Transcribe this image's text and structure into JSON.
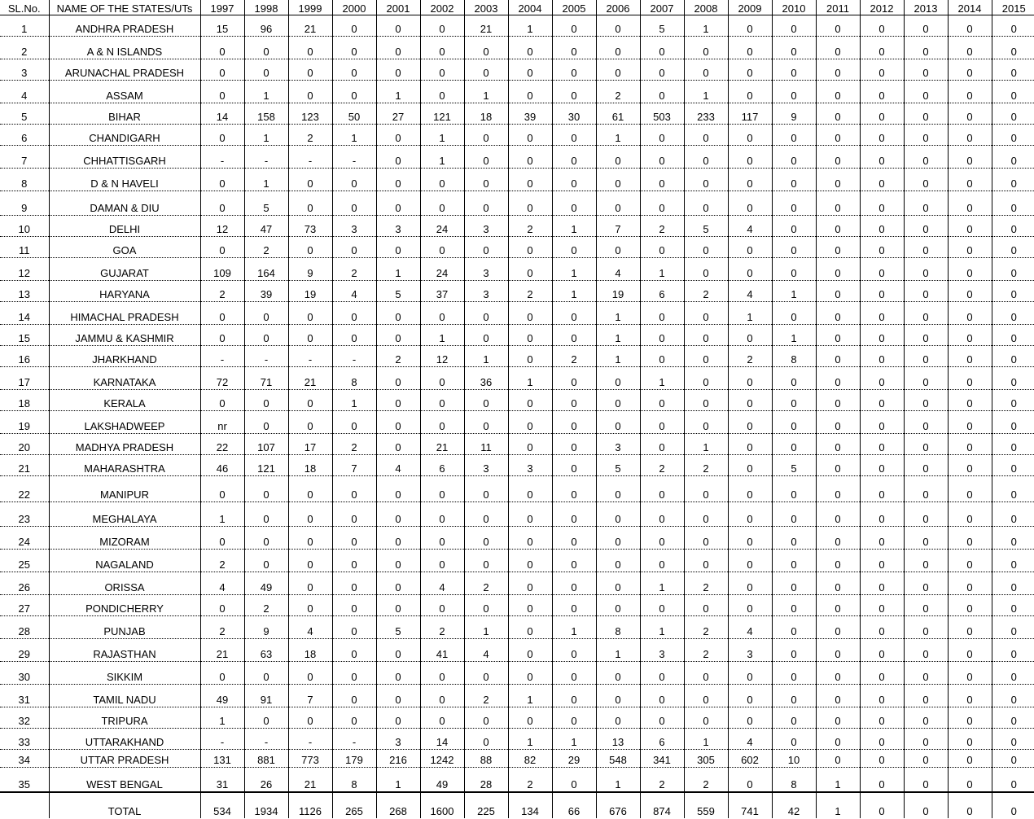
{
  "headers": [
    "SL.No.",
    "NAME OF THE STATES/UTs",
    "1997",
    "1998",
    "1999",
    "2000",
    "2001",
    "2002",
    "2003",
    "2004",
    "2005",
    "2006",
    "2007",
    "2008",
    "2009",
    "2010",
    "2011",
    "2012",
    "2013",
    "2014",
    "2015"
  ],
  "rows": [
    {
      "sl": "1",
      "name": "ANDHRA PRADESH",
      "v": [
        "15",
        "96",
        "21",
        "0",
        "0",
        "0",
        "21",
        "1",
        "0",
        "0",
        "5",
        "1",
        "0",
        "0",
        "0",
        "0",
        "0",
        "0",
        "0"
      ]
    },
    {
      "sl": "2",
      "name": "A & N ISLANDS",
      "v": [
        "0",
        "0",
        "0",
        "0",
        "0",
        "0",
        "0",
        "0",
        "0",
        "0",
        "0",
        "0",
        "0",
        "0",
        "0",
        "0",
        "0",
        "0",
        "0"
      ]
    },
    {
      "sl": "3",
      "name": "ARUNACHAL PRADESH",
      "v": [
        "0",
        "0",
        "0",
        "0",
        "0",
        "0",
        "0",
        "0",
        "0",
        "0",
        "0",
        "0",
        "0",
        "0",
        "0",
        "0",
        "0",
        "0",
        "0"
      ]
    },
    {
      "sl": "4",
      "name": "ASSAM",
      "v": [
        "0",
        "1",
        "0",
        "0",
        "1",
        "0",
        "1",
        "0",
        "0",
        "2",
        "0",
        "1",
        "0",
        "0",
        "0",
        "0",
        "0",
        "0",
        "0"
      ]
    },
    {
      "sl": "5",
      "name": "BIHAR",
      "v": [
        "14",
        "158",
        "123",
        "50",
        "27",
        "121",
        "18",
        "39",
        "30",
        "61",
        "503",
        "233",
        "117",
        "9",
        "0",
        "0",
        "0",
        "0",
        "0"
      ]
    },
    {
      "sl": "6",
      "name": "CHANDIGARH",
      "v": [
        "0",
        "1",
        "2",
        "1",
        "0",
        "1",
        "0",
        "0",
        "0",
        "1",
        "0",
        "0",
        "0",
        "0",
        "0",
        "0",
        "0",
        "0",
        "0"
      ]
    },
    {
      "sl": "7",
      "name": "CHHATTISGARH",
      "v": [
        "-",
        "-",
        "-",
        "-",
        "0",
        "1",
        "0",
        "0",
        "0",
        "0",
        "0",
        "0",
        "0",
        "0",
        "0",
        "0",
        "0",
        "0",
        "0"
      ]
    },
    {
      "sl": "8",
      "name": "D & N HAVELI",
      "v": [
        "0",
        "1",
        "0",
        "0",
        "0",
        "0",
        "0",
        "0",
        "0",
        "0",
        "0",
        "0",
        "0",
        "0",
        "0",
        "0",
        "0",
        "0",
        "0"
      ]
    },
    {
      "sl": "9",
      "name": "DAMAN & DIU",
      "v": [
        "0",
        "5",
        "0",
        "0",
        "0",
        "0",
        "0",
        "0",
        "0",
        "0",
        "0",
        "0",
        "0",
        "0",
        "0",
        "0",
        "0",
        "0",
        "0"
      ]
    },
    {
      "sl": "10",
      "name": "DELHI",
      "v": [
        "12",
        "47",
        "73",
        "3",
        "3",
        "24",
        "3",
        "2",
        "1",
        "7",
        "2",
        "5",
        "4",
        "0",
        "0",
        "0",
        "0",
        "0",
        "0"
      ]
    },
    {
      "sl": "11",
      "name": "GOA",
      "v": [
        "0",
        "2",
        "0",
        "0",
        "0",
        "0",
        "0",
        "0",
        "0",
        "0",
        "0",
        "0",
        "0",
        "0",
        "0",
        "0",
        "0",
        "0",
        "0"
      ]
    },
    {
      "sl": "12",
      "name": "GUJARAT",
      "v": [
        "109",
        "164",
        "9",
        "2",
        "1",
        "24",
        "3",
        "0",
        "1",
        "4",
        "1",
        "0",
        "0",
        "0",
        "0",
        "0",
        "0",
        "0",
        "0"
      ]
    },
    {
      "sl": "13",
      "name": "HARYANA",
      "v": [
        "2",
        "39",
        "19",
        "4",
        "5",
        "37",
        "3",
        "2",
        "1",
        "19",
        "6",
        "2",
        "4",
        "1",
        "0",
        "0",
        "0",
        "0",
        "0"
      ]
    },
    {
      "sl": "14",
      "name": "HIMACHAL PRADESH",
      "v": [
        "0",
        "0",
        "0",
        "0",
        "0",
        "0",
        "0",
        "0",
        "0",
        "1",
        "0",
        "0",
        "1",
        "0",
        "0",
        "0",
        "0",
        "0",
        "0"
      ]
    },
    {
      "sl": "15",
      "name": "JAMMU & KASHMIR",
      "v": [
        "0",
        "0",
        "0",
        "0",
        "0",
        "1",
        "0",
        "0",
        "0",
        "1",
        "0",
        "0",
        "0",
        "1",
        "0",
        "0",
        "0",
        "0",
        "0"
      ]
    },
    {
      "sl": "16",
      "name": "JHARKHAND",
      "v": [
        "-",
        "-",
        "-",
        "-",
        "2",
        "12",
        "1",
        "0",
        "2",
        "1",
        "0",
        "0",
        "2",
        "8",
        "0",
        "0",
        "0",
        "0",
        "0"
      ]
    },
    {
      "sl": "17",
      "name": "KARNATAKA",
      "v": [
        "72",
        "71",
        "21",
        "8",
        "0",
        "0",
        "36",
        "1",
        "0",
        "0",
        "1",
        "0",
        "0",
        "0",
        "0",
        "0",
        "0",
        "0",
        "0"
      ]
    },
    {
      "sl": "18",
      "name": "KERALA",
      "v": [
        "0",
        "0",
        "0",
        "1",
        "0",
        "0",
        "0",
        "0",
        "0",
        "0",
        "0",
        "0",
        "0",
        "0",
        "0",
        "0",
        "0",
        "0",
        "0"
      ]
    },
    {
      "sl": "19",
      "name": "LAKSHADWEEP",
      "v": [
        "nr",
        "0",
        "0",
        "0",
        "0",
        "0",
        "0",
        "0",
        "0",
        "0",
        "0",
        "0",
        "0",
        "0",
        "0",
        "0",
        "0",
        "0",
        "0"
      ]
    },
    {
      "sl": "20",
      "name": "MADHYA PRADESH",
      "v": [
        "22",
        "107",
        "17",
        "2",
        "0",
        "21",
        "11",
        "0",
        "0",
        "3",
        "0",
        "1",
        "0",
        "0",
        "0",
        "0",
        "0",
        "0",
        "0"
      ]
    },
    {
      "sl": "21",
      "name": "MAHARASHTRA",
      "v": [
        "46",
        "121",
        "18",
        "7",
        "4",
        "6",
        "3",
        "3",
        "0",
        "5",
        "2",
        "2",
        "0",
        "5",
        "0",
        "0",
        "0",
        "0",
        "0"
      ]
    },
    {
      "sl": "22",
      "name": "MANIPUR",
      "v": [
        "0",
        "0",
        "0",
        "0",
        "0",
        "0",
        "0",
        "0",
        "0",
        "0",
        "0",
        "0",
        "0",
        "0",
        "0",
        "0",
        "0",
        "0",
        "0"
      ]
    },
    {
      "sl": "23",
      "name": "MEGHALAYA",
      "v": [
        "1",
        "0",
        "0",
        "0",
        "0",
        "0",
        "0",
        "0",
        "0",
        "0",
        "0",
        "0",
        "0",
        "0",
        "0",
        "0",
        "0",
        "0",
        "0"
      ]
    },
    {
      "sl": "24",
      "name": "MIZORAM",
      "v": [
        "0",
        "0",
        "0",
        "0",
        "0",
        "0",
        "0",
        "0",
        "0",
        "0",
        "0",
        "0",
        "0",
        "0",
        "0",
        "0",
        "0",
        "0",
        "0"
      ]
    },
    {
      "sl": "25",
      "name": "NAGALAND",
      "v": [
        "2",
        "0",
        "0",
        "0",
        "0",
        "0",
        "0",
        "0",
        "0",
        "0",
        "0",
        "0",
        "0",
        "0",
        "0",
        "0",
        "0",
        "0",
        "0"
      ]
    },
    {
      "sl": "26",
      "name": "ORISSA",
      "v": [
        "4",
        "49",
        "0",
        "0",
        "0",
        "4",
        "2",
        "0",
        "0",
        "0",
        "1",
        "2",
        "0",
        "0",
        "0",
        "0",
        "0",
        "0",
        "0"
      ]
    },
    {
      "sl": "27",
      "name": "PONDICHERRY",
      "v": [
        "0",
        "2",
        "0",
        "0",
        "0",
        "0",
        "0",
        "0",
        "0",
        "0",
        "0",
        "0",
        "0",
        "0",
        "0",
        "0",
        "0",
        "0",
        "0"
      ]
    },
    {
      "sl": "28",
      "name": "PUNJAB",
      "v": [
        "2",
        "9",
        "4",
        "0",
        "5",
        "2",
        "1",
        "0",
        "1",
        "8",
        "1",
        "2",
        "4",
        "0",
        "0",
        "0",
        "0",
        "0",
        "0"
      ]
    },
    {
      "sl": "29",
      "name": "RAJASTHAN",
      "v": [
        "21",
        "63",
        "18",
        "0",
        "0",
        "41",
        "4",
        "0",
        "0",
        "1",
        "3",
        "2",
        "3",
        "0",
        "0",
        "0",
        "0",
        "0",
        "0"
      ]
    },
    {
      "sl": "30",
      "name": "SIKKIM",
      "v": [
        "0",
        "0",
        "0",
        "0",
        "0",
        "0",
        "0",
        "0",
        "0",
        "0",
        "0",
        "0",
        "0",
        "0",
        "0",
        "0",
        "0",
        "0",
        "0"
      ]
    },
    {
      "sl": "31",
      "name": "TAMIL NADU",
      "v": [
        "49",
        "91",
        "7",
        "0",
        "0",
        "0",
        "2",
        "1",
        "0",
        "0",
        "0",
        "0",
        "0",
        "0",
        "0",
        "0",
        "0",
        "0",
        "0"
      ]
    },
    {
      "sl": "32",
      "name": "TRIPURA",
      "v": [
        "1",
        "0",
        "0",
        "0",
        "0",
        "0",
        "0",
        "0",
        "0",
        "0",
        "0",
        "0",
        "0",
        "0",
        "0",
        "0",
        "0",
        "0",
        "0"
      ]
    },
    {
      "sl": "33",
      "name": "UTTARAKHAND",
      "v": [
        "-",
        "-",
        "-",
        "-",
        "3",
        "14",
        "0",
        "1",
        "1",
        "13",
        "6",
        "1",
        "4",
        "0",
        "0",
        "0",
        "0",
        "0",
        "0"
      ]
    },
    {
      "sl": "34",
      "name": "UTTAR PRADESH",
      "v": [
        "131",
        "881",
        "773",
        "179",
        "216",
        "1242",
        "88",
        "82",
        "29",
        "548",
        "341",
        "305",
        "602",
        "10",
        "0",
        "0",
        "0",
        "0",
        "0"
      ]
    },
    {
      "sl": "35",
      "name": "WEST BENGAL",
      "v": [
        "31",
        "26",
        "21",
        "8",
        "1",
        "49",
        "28",
        "2",
        "0",
        "1",
        "2",
        "2",
        "0",
        "8",
        "1",
        "0",
        "0",
        "0",
        "0"
      ]
    }
  ],
  "total": {
    "sl": "",
    "name": "TOTAL",
    "v": [
      "534",
      "1934",
      "1126",
      "265",
      "268",
      "1600",
      "225",
      "134",
      "66",
      "676",
      "874",
      "559",
      "741",
      "42",
      "1",
      "0",
      "0",
      "0",
      "0"
    ]
  }
}
